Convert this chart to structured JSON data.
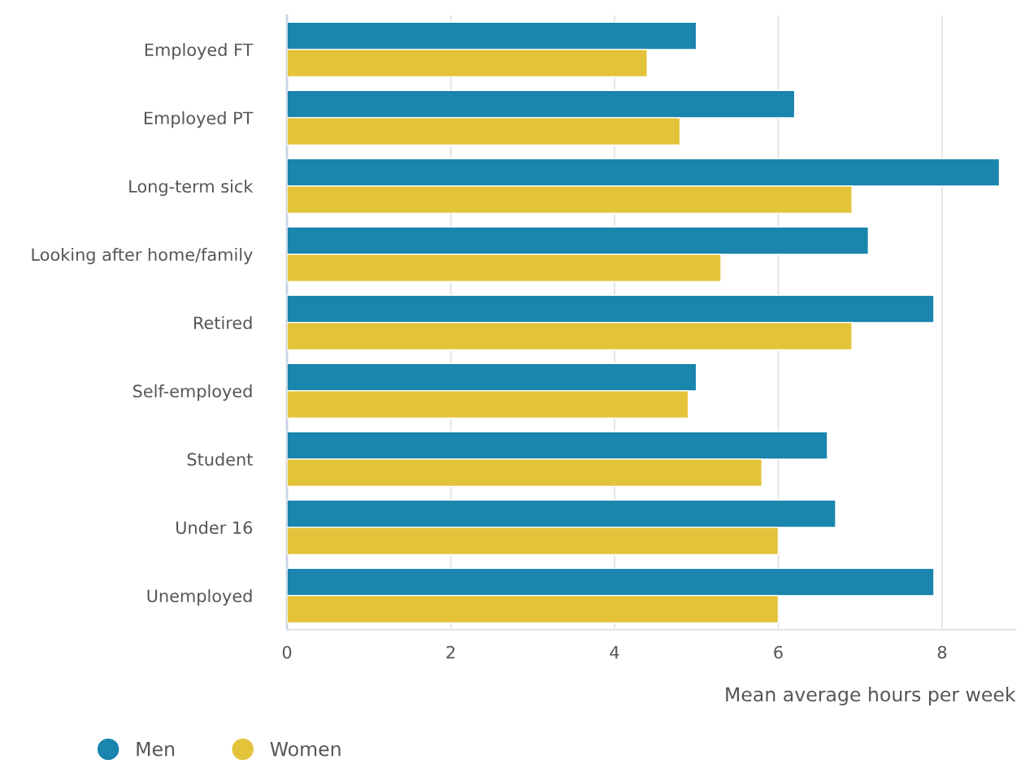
{
  "chart_data": {
    "type": "bar",
    "orientation": "horizontal",
    "xlabel": "Mean average hours per week",
    "categories": [
      "Employed FT",
      "Employed PT",
      "Long-term sick",
      "Looking after home/family",
      "Retired",
      "Self-employed",
      "Student",
      "Under 16",
      "Unemployed"
    ],
    "series": [
      {
        "name": "Men",
        "color": "#1a85ad",
        "values": [
          5.0,
          6.2,
          8.7,
          7.1,
          7.9,
          5.0,
          6.6,
          6.7,
          7.9
        ]
      },
      {
        "name": "Women",
        "color": "#e3c33a",
        "values": [
          4.4,
          4.8,
          6.9,
          5.3,
          6.9,
          4.9,
          5.8,
          6.0,
          6.0
        ]
      }
    ],
    "xlim": [
      0,
      8.9
    ],
    "xticks": [
      0,
      2,
      4,
      6,
      8
    ],
    "grid": "x",
    "legend": "bottom left"
  }
}
